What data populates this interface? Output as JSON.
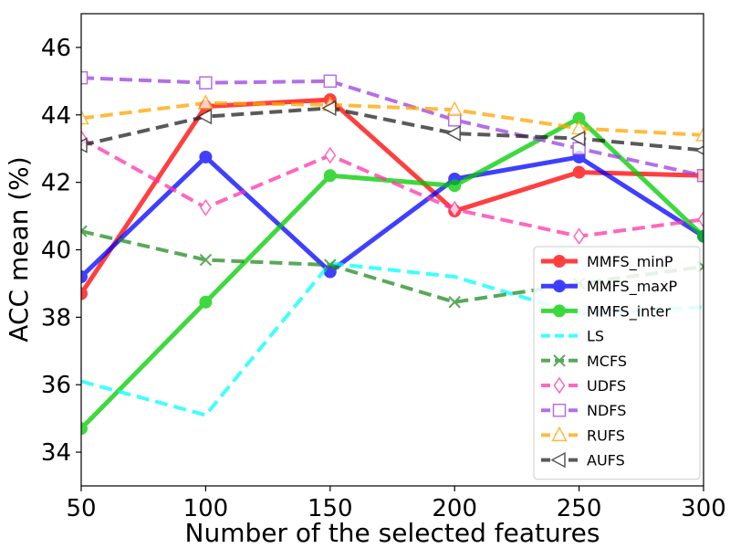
{
  "chart_data": {
    "type": "line",
    "xlabel": "Number of the selected features",
    "ylabel": "ACC mean (%)",
    "x": [
      50,
      100,
      150,
      200,
      250,
      300
    ],
    "xlim": [
      50,
      300
    ],
    "ylim": [
      33,
      47
    ],
    "xticks": [
      "50",
      "100",
      "150",
      "200",
      "250",
      "300"
    ],
    "yticks": [
      "34",
      "36",
      "38",
      "40",
      "42",
      "44",
      "46"
    ],
    "grid": false,
    "legend_position": "lower-right",
    "series": [
      {
        "name": "MMFS_minP",
        "color": "#ff0000",
        "dash": "solid",
        "marker": "circle-filled",
        "values": [
          38.7,
          44.25,
          44.45,
          41.15,
          42.3,
          42.2
        ]
      },
      {
        "name": "MMFS_maxP",
        "color": "#0000ff",
        "dash": "solid",
        "marker": "circle-filled",
        "values": [
          39.2,
          42.75,
          39.35,
          42.1,
          42.75,
          40.4
        ]
      },
      {
        "name": "MMFS_inter",
        "color": "#00cc00",
        "dash": "solid",
        "marker": "circle-filled",
        "values": [
          34.7,
          38.45,
          42.2,
          41.9,
          43.9,
          40.4
        ]
      },
      {
        "name": "LS",
        "color": "#00ffff",
        "dash": "dashed",
        "marker": "none",
        "values": [
          36.1,
          35.1,
          39.6,
          39.2,
          38.1,
          38.3
        ]
      },
      {
        "name": "MCFS",
        "color": "#228b22",
        "dash": "dashed",
        "marker": "x",
        "values": [
          40.55,
          39.7,
          39.55,
          38.45,
          39.0,
          39.5
        ]
      },
      {
        "name": "UDFS",
        "color": "#ff33aa",
        "dash": "dashed",
        "marker": "diamond-open",
        "values": [
          43.3,
          41.25,
          42.8,
          41.2,
          40.4,
          40.9
        ]
      },
      {
        "name": "NDFS",
        "color": "#9b40e0",
        "dash": "dashed",
        "marker": "square-open",
        "values": [
          45.1,
          44.95,
          45.0,
          43.85,
          43.0,
          42.2
        ]
      },
      {
        "name": "RUFS",
        "color": "#ffa500",
        "dash": "dashed",
        "marker": "triangle-open",
        "values": [
          43.9,
          44.35,
          44.3,
          44.15,
          43.6,
          43.4
        ]
      },
      {
        "name": "AUFS",
        "color": "#222222",
        "dash": "dashed",
        "marker": "triangle-left-open",
        "values": [
          43.1,
          43.95,
          44.2,
          43.45,
          43.3,
          42.95
        ]
      }
    ]
  }
}
